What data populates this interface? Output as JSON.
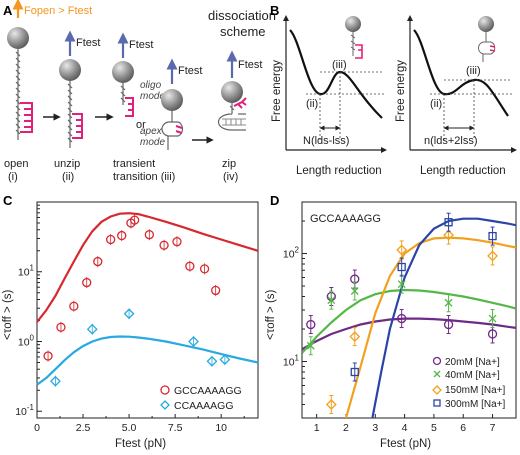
{
  "colors": {
    "red": "#d7282f",
    "cyan": "#29a9e0",
    "blue": "#2a44a8",
    "orange": "#f2a11f",
    "green": "#55b747",
    "purple": "#6e2a86",
    "magenta": "#e0217a",
    "f_open_arrow": "#f7941d",
    "f_test_arrow": "#5b6aae",
    "bead": "#8c8c8c"
  },
  "panel_a": {
    "label": "A",
    "f_open_text": "Fopen > Ftest",
    "f_test_text": "Ftest",
    "title_line1": "dissociation",
    "title_line2": "scheme",
    "or_text": "or",
    "oligo_mode": "oligo\nmode",
    "apex_mode": "apex\nmode",
    "states": [
      {
        "name": "open",
        "num": "(i)"
      },
      {
        "name": "unzip",
        "num": "(ii)"
      },
      {
        "name": "transient\ntransition",
        "num": "(iii)"
      },
      {
        "name": "zip",
        "num": "(iv)"
      }
    ]
  },
  "panel_b": {
    "label": "B",
    "ylabel": "Free energy",
    "xlabel": "Length reduction",
    "state_ii": "(ii)",
    "state_iii": "(iii)",
    "left_formula": "N(lds-lss)",
    "right_formula": "n(lds+2lss)"
  },
  "panel_c": {
    "label": "C",
    "xlabel": "Ftest (pN)",
    "ylabel": "<τoff > (s)",
    "xticks": [
      "0",
      "2.5",
      "5.0",
      "7.5",
      "10"
    ],
    "yticks": [
      "10-1",
      "100",
      "101"
    ],
    "legend": [
      "GCCAAAAGG",
      "CCAAAAGG"
    ]
  },
  "panel_d": {
    "label": "D",
    "inset": "GCCAAAAGG",
    "xlabel": "Ftest (pN)",
    "ylabel": "<τoff > (s)",
    "xticks": [
      "1",
      "2",
      "3",
      "4",
      "5",
      "6",
      "7"
    ],
    "yticks": [
      "101",
      "102"
    ],
    "legend": [
      "20mM [Na+]",
      "40mM [Na+]",
      "150mM [Na+]",
      "300mM [Na+]"
    ]
  },
  "chart_data": [
    {
      "type": "scatter",
      "panel": "C",
      "xlabel": "Ftest (pN)",
      "ylabel": "<τoff > (s)",
      "xlim": [
        0,
        12
      ],
      "ylim": [
        0.08,
        100
      ],
      "yscale": "log",
      "series": [
        {
          "name": "GCCAAAAGG",
          "marker": "circle",
          "x": [
            0.6,
            1.3,
            2.0,
            2.7,
            3.3,
            4.0,
            4.6,
            5.1,
            5.3,
            6.1,
            6.9,
            7.6,
            8.3,
            9.1,
            9.7
          ],
          "y": [
            0.62,
            1.6,
            3.2,
            7.0,
            14,
            29,
            33,
            50,
            55,
            34,
            24,
            27,
            12,
            11,
            5.4
          ]
        },
        {
          "name": "CCAAAAGG",
          "marker": "diamond",
          "x": [
            1.0,
            3.0,
            5.0,
            8.5,
            9.5,
            10.2
          ],
          "y": [
            0.27,
            1.5,
            2.5,
            1.0,
            0.52,
            0.55
          ]
        }
      ],
      "fit_curves": [
        {
          "series": "GCCAAAAGG",
          "x": [
            0,
            0.5,
            1,
            1.5,
            2,
            2.5,
            3,
            3.5,
            4,
            4.5,
            5,
            5.5,
            6,
            7,
            8,
            9,
            10,
            11,
            12
          ],
          "y": [
            1.9,
            2.8,
            4.5,
            8,
            14,
            24,
            38,
            52,
            62,
            68,
            69,
            67,
            62,
            52,
            43,
            35,
            29,
            24,
            20
          ]
        },
        {
          "series": "CCAAAAGG",
          "x": [
            0,
            0.5,
            1,
            1.5,
            2,
            2.5,
            3,
            3.5,
            4,
            4.5,
            5,
            5.5,
            6,
            7,
            8,
            9,
            10,
            11,
            12
          ],
          "y": [
            0.24,
            0.3,
            0.4,
            0.54,
            0.7,
            0.86,
            1.0,
            1.1,
            1.16,
            1.18,
            1.17,
            1.14,
            1.1,
            1.0,
            0.88,
            0.77,
            0.66,
            0.57,
            0.5
          ]
        }
      ]
    },
    {
      "type": "scatter",
      "panel": "D",
      "xlabel": "Ftest (pN)",
      "ylabel": "<τoff > (s)",
      "xlim": [
        0.5,
        7.8
      ],
      "ylim": [
        3,
        300
      ],
      "yscale": "log",
      "series": [
        {
          "name": "20mM [Na+]",
          "marker": "circle",
          "x": [
            0.8,
            1.5,
            2.3,
            3.9,
            5.5,
            7.0
          ],
          "y": [
            22,
            40,
            58,
            25,
            22,
            18
          ]
        },
        {
          "name": "40mM [Na+]",
          "marker": "x",
          "x": [
            0.8,
            1.5,
            2.3,
            3.9,
            5.5,
            7.0
          ],
          "y": [
            14,
            37,
            45,
            52,
            35,
            25
          ]
        },
        {
          "name": "150mM [Na+]",
          "marker": "diamond",
          "x": [
            1.5,
            2.3,
            3.9,
            5.5,
            7.0
          ],
          "y": [
            4,
            17,
            108,
            148,
            95
          ]
        },
        {
          "name": "300mM [Na+]",
          "marker": "square",
          "x": [
            2.3,
            3.9,
            5.5,
            7.0
          ],
          "y": [
            8,
            75,
            195,
            145
          ]
        }
      ],
      "fit_curves": [
        {
          "series": "20mM [Na+]",
          "x": [
            0.5,
            1,
            1.5,
            2,
            2.5,
            3,
            3.5,
            4,
            4.5,
            5,
            5.5,
            6,
            6.5,
            7,
            7.5,
            7.8
          ],
          "y": [
            13,
            15.5,
            18,
            20,
            22,
            23.5,
            24.5,
            25,
            25,
            24.7,
            24.2,
            23.5,
            22.8,
            22,
            21,
            20.5
          ]
        },
        {
          "series": "40mM [Na+]",
          "x": [
            0.5,
            1,
            1.5,
            2,
            2.5,
            3,
            3.5,
            4,
            4.5,
            5,
            5.5,
            6,
            6.5,
            7,
            7.5,
            7.8
          ],
          "y": [
            12,
            17,
            23,
            30,
            37,
            42,
            45,
            46,
            45.5,
            44,
            42,
            40,
            37.5,
            35,
            32.5,
            31
          ]
        },
        {
          "series": "150mM [Na+]",
          "x": [
            2.0,
            2.5,
            3,
            3.5,
            4,
            4.5,
            5,
            5.5,
            6,
            6.5,
            7,
            7.5,
            7.8
          ],
          "y": [
            3,
            9,
            28,
            62,
            100,
            125,
            138,
            140,
            138,
            133,
            126,
            118,
            114
          ]
        },
        {
          "series": "300mM [Na+]",
          "x": [
            2.9,
            3.2,
            3.5,
            4,
            4.5,
            5,
            5.5,
            6,
            6.5,
            7,
            7.5,
            7.8
          ],
          "y": [
            3,
            8,
            20,
            60,
            120,
            170,
            200,
            210,
            210,
            200,
            190,
            183
          ]
        }
      ]
    }
  ]
}
